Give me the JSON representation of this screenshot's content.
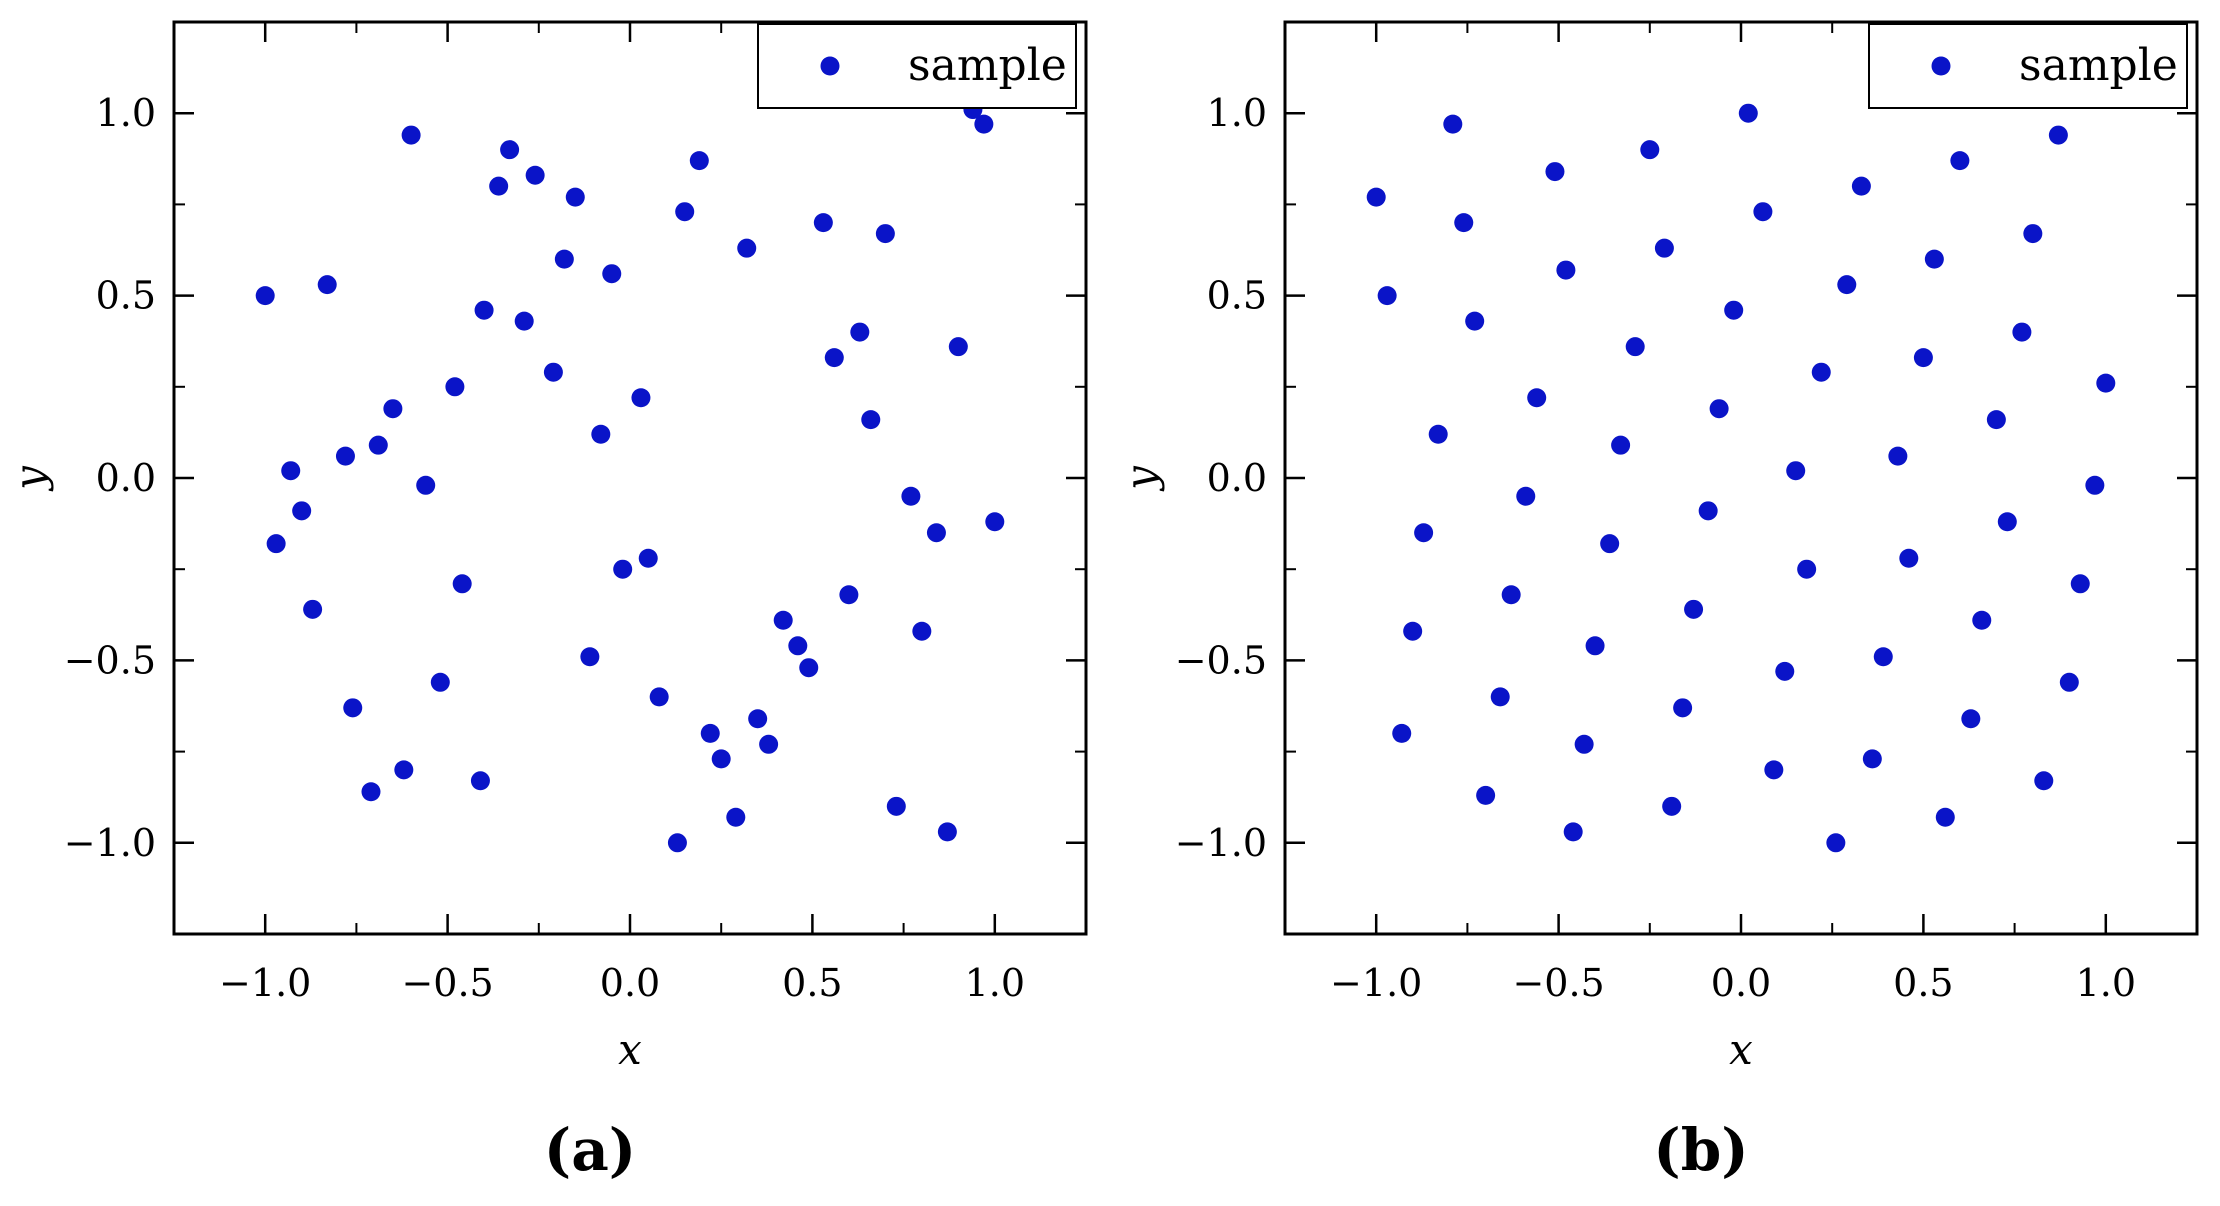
{
  "chart_data": [
    {
      "type": "scatter",
      "panel_label": "(a)",
      "xlabel": "x",
      "ylabel": "y",
      "xlim": [
        -1.25,
        1.25
      ],
      "ylim": [
        -1.25,
        1.25
      ],
      "xticks": [
        -1.0,
        -0.5,
        0.0,
        0.5,
        1.0
      ],
      "yticks": [
        -1.0,
        -0.5,
        0.0,
        0.5,
        1.0
      ],
      "xtick_labels": [
        "−1.0",
        "−0.5",
        "0.0",
        "0.5",
        "1.0"
      ],
      "ytick_labels": [
        "−1.0",
        "−0.5",
        "0.0",
        "0.5",
        "1.0"
      ],
      "grid": false,
      "legend_position": "top-right",
      "series": [
        {
          "name": "sample",
          "color": "#0a14c8",
          "marker": "circle",
          "points": [
            [
              -1.0,
              0.5
            ],
            [
              -0.6,
              0.94
            ],
            [
              -0.33,
              0.9
            ],
            [
              -0.36,
              0.8
            ],
            [
              -0.26,
              0.83
            ],
            [
              -0.15,
              0.77
            ],
            [
              0.19,
              0.87
            ],
            [
              0.15,
              0.73
            ],
            [
              0.32,
              0.63
            ],
            [
              0.53,
              0.7
            ],
            [
              0.7,
              0.67
            ],
            [
              0.94,
              1.01
            ],
            [
              0.97,
              0.97
            ],
            [
              -0.83,
              0.53
            ],
            [
              -0.4,
              0.46
            ],
            [
              -0.29,
              0.43
            ],
            [
              -0.18,
              0.6
            ],
            [
              -0.05,
              0.56
            ],
            [
              -0.21,
              0.29
            ],
            [
              -0.48,
              0.25
            ],
            [
              -0.65,
              0.19
            ],
            [
              -0.69,
              0.09
            ],
            [
              -0.78,
              0.06
            ],
            [
              -0.93,
              0.02
            ],
            [
              -0.56,
              -0.02
            ],
            [
              -0.08,
              0.12
            ],
            [
              0.03,
              0.22
            ],
            [
              0.56,
              0.33
            ],
            [
              0.63,
              0.4
            ],
            [
              0.66,
              0.16
            ],
            [
              0.9,
              0.36
            ],
            [
              0.77,
              -0.05
            ],
            [
              0.84,
              -0.15
            ],
            [
              1.0,
              -0.12
            ],
            [
              -0.97,
              -0.18
            ],
            [
              -0.9,
              -0.09
            ],
            [
              -0.87,
              -0.36
            ],
            [
              -0.46,
              -0.29
            ],
            [
              -0.02,
              -0.25
            ],
            [
              0.05,
              -0.22
            ],
            [
              -0.11,
              -0.49
            ],
            [
              -0.52,
              -0.56
            ],
            [
              -0.76,
              -0.63
            ],
            [
              -0.62,
              -0.8
            ],
            [
              -0.71,
              -0.86
            ],
            [
              -0.41,
              -0.83
            ],
            [
              0.08,
              -0.6
            ],
            [
              0.22,
              -0.7
            ],
            [
              0.25,
              -0.77
            ],
            [
              0.29,
              -0.93
            ],
            [
              0.13,
              -1.0
            ],
            [
              0.35,
              -0.66
            ],
            [
              0.38,
              -0.73
            ],
            [
              0.42,
              -0.39
            ],
            [
              0.46,
              -0.46
            ],
            [
              0.49,
              -0.52
            ],
            [
              0.6,
              -0.32
            ],
            [
              0.8,
              -0.42
            ],
            [
              0.73,
              -0.9
            ],
            [
              0.87,
              -0.97
            ]
          ]
        }
      ]
    },
    {
      "type": "scatter",
      "panel_label": "(b)",
      "xlabel": "x",
      "ylabel": "y",
      "xlim": [
        -1.25,
        1.25
      ],
      "ylim": [
        -1.25,
        1.25
      ],
      "xticks": [
        -1.0,
        -0.5,
        0.0,
        0.5,
        1.0
      ],
      "yticks": [
        -1.0,
        -0.5,
        0.0,
        0.5,
        1.0
      ],
      "xtick_labels": [
        "−1.0",
        "−0.5",
        "0.0",
        "0.5",
        "1.0"
      ],
      "ytick_labels": [
        "−1.0",
        "−0.5",
        "0.0",
        "0.5",
        "1.0"
      ],
      "grid": false,
      "legend_position": "top-right",
      "series": [
        {
          "name": "sample",
          "color": "#0a14c8",
          "marker": "circle",
          "points": [
            [
              -1.0,
              0.77
            ],
            [
              -0.79,
              0.97
            ],
            [
              0.02,
              1.0
            ],
            [
              -0.51,
              0.84
            ],
            [
              -0.25,
              0.9
            ],
            [
              0.33,
              0.8
            ],
            [
              0.6,
              0.87
            ],
            [
              0.87,
              0.94
            ],
            [
              -0.97,
              0.5
            ],
            [
              -0.76,
              0.7
            ],
            [
              -0.48,
              0.57
            ],
            [
              -0.21,
              0.63
            ],
            [
              0.06,
              0.73
            ],
            [
              0.29,
              0.53
            ],
            [
              0.53,
              0.6
            ],
            [
              0.8,
              0.67
            ],
            [
              -0.73,
              0.43
            ],
            [
              -0.29,
              0.36
            ],
            [
              -0.02,
              0.46
            ],
            [
              0.22,
              0.29
            ],
            [
              0.5,
              0.33
            ],
            [
              0.77,
              0.4
            ],
            [
              1.0,
              0.26
            ],
            [
              -0.83,
              0.12
            ],
            [
              -0.56,
              0.22
            ],
            [
              -0.33,
              0.09
            ],
            [
              -0.06,
              0.19
            ],
            [
              0.15,
              0.02
            ],
            [
              0.43,
              0.06
            ],
            [
              0.7,
              0.16
            ],
            [
              -0.87,
              -0.15
            ],
            [
              -0.59,
              -0.05
            ],
            [
              -0.36,
              -0.18
            ],
            [
              -0.09,
              -0.09
            ],
            [
              0.18,
              -0.25
            ],
            [
              0.46,
              -0.22
            ],
            [
              0.73,
              -0.12
            ],
            [
              0.97,
              -0.02
            ],
            [
              -0.9,
              -0.42
            ],
            [
              -0.63,
              -0.32
            ],
            [
              -0.4,
              -0.46
            ],
            [
              -0.13,
              -0.36
            ],
            [
              0.12,
              -0.53
            ],
            [
              0.39,
              -0.49
            ],
            [
              0.66,
              -0.39
            ],
            [
              0.93,
              -0.29
            ],
            [
              -0.93,
              -0.7
            ],
            [
              -0.66,
              -0.6
            ],
            [
              -0.43,
              -0.73
            ],
            [
              -0.16,
              -0.63
            ],
            [
              -0.7,
              -0.87
            ],
            [
              -0.46,
              -0.97
            ],
            [
              -0.19,
              -0.9
            ],
            [
              0.09,
              -0.8
            ],
            [
              0.26,
              -1.0
            ],
            [
              0.36,
              -0.77
            ],
            [
              0.56,
              -0.93
            ],
            [
              0.63,
              -0.66
            ],
            [
              0.83,
              -0.83
            ],
            [
              0.9,
              -0.56
            ]
          ]
        }
      ]
    }
  ]
}
